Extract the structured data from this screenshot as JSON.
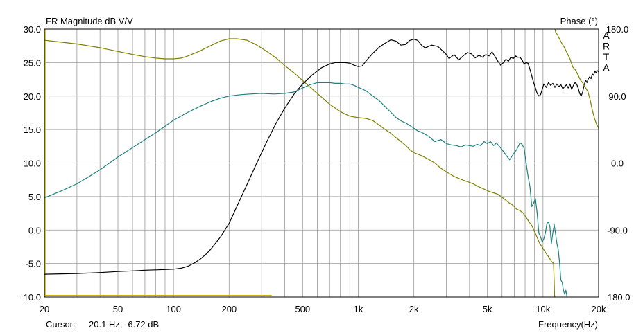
{
  "chart_data": {
    "type": "line",
    "title": "FR Magnitude dB V/V",
    "right_title": "Phase (°)",
    "brand": [
      "A",
      "R",
      "T",
      "A"
    ],
    "xlabel": "Frequency(Hz)",
    "x_scale": "log",
    "xlim": [
      20,
      20000
    ],
    "ylim": [
      -10,
      30
    ],
    "y2lim": [
      -180,
      180
    ],
    "grid": true,
    "x_tick_values": [
      20,
      50,
      100,
      200,
      500,
      1000,
      2000,
      5000,
      10000,
      20000
    ],
    "x_tick_labels": [
      "20",
      "50",
      "100",
      "200",
      "500",
      "1k",
      "2k",
      "5k",
      "10k",
      "20k"
    ],
    "y_tick_values": [
      -10,
      -5,
      0,
      5,
      10,
      15,
      20,
      25,
      30
    ],
    "y_tick_labels": [
      "-10.0",
      "-5.0",
      "0.0",
      "5.0",
      "10.0",
      "15.0",
      "20.0",
      "25.0",
      "30.0"
    ],
    "y2_tick_values": [
      180,
      90,
      0,
      -90,
      -180
    ],
    "y2_tick_labels": [
      "180.0",
      "90.0",
      "0.0",
      "-90.0",
      "-180.0"
    ],
    "cursor_label": "Cursor:",
    "cursor_value": "20.1 Hz, -6.72 dB",
    "colors": {
      "grid": "#9a9a9a",
      "border": "#000000",
      "cursor_line": "#c8b400"
    },
    "series": [
      {
        "color": "#000000",
        "axis": "left",
        "x": [
          20,
          30,
          40,
          50,
          60,
          70,
          80,
          90,
          100,
          110,
          120,
          130,
          140,
          150,
          160,
          180,
          200,
          220,
          250,
          280,
          320,
          360,
          400,
          450,
          500,
          560,
          630,
          700,
          750,
          800,
          850,
          900,
          950,
          1000,
          1050,
          1100,
          1200,
          1300,
          1400,
          1500,
          1600,
          1700,
          1800,
          1900,
          2000,
          2100,
          2200,
          2300,
          2500,
          2700,
          2900,
          3000,
          3100,
          3300,
          3500,
          3700,
          3900,
          4100,
          4300,
          4500,
          4700,
          4900,
          5100,
          5300,
          5500,
          5700,
          5900,
          6100,
          6300,
          6500,
          6700,
          6900,
          7100,
          7300,
          7500,
          7700,
          7900,
          8100,
          8300,
          8500,
          8700,
          8900,
          9100,
          9300,
          9500,
          9700,
          9900,
          10100,
          10400,
          10700,
          11000,
          11300,
          11600,
          11900,
          12200,
          12500,
          12800,
          13100,
          13400,
          13700,
          14000,
          14300,
          14600,
          14900,
          15200,
          15500,
          15800,
          16100,
          16400,
          16700,
          17000,
          17300,
          17600,
          17900,
          18200,
          18500,
          18800,
          19100,
          19400,
          19700,
          20000
        ],
        "values": [
          -6.6,
          -6.5,
          -6.35,
          -6.2,
          -6.1,
          -6.0,
          -5.95,
          -5.9,
          -5.85,
          -5.7,
          -5.4,
          -4.9,
          -4.3,
          -3.6,
          -2.8,
          -1.0,
          1.0,
          3.5,
          6.8,
          9.8,
          13.2,
          16.0,
          18.2,
          20.3,
          21.8,
          23.1,
          24.2,
          24.8,
          25.0,
          25.0,
          25.0,
          24.9,
          24.6,
          24.4,
          24.5,
          25.2,
          26.4,
          27.3,
          27.9,
          28.4,
          28.2,
          27.6,
          27.7,
          28.3,
          28.5,
          28.3,
          27.6,
          27.2,
          27.6,
          27.4,
          26.6,
          26.2,
          25.6,
          26.2,
          25.4,
          26.0,
          26.5,
          26.3,
          25.7,
          26.1,
          25.8,
          26.2,
          26.0,
          26.6,
          25.9,
          25.2,
          24.6,
          25.0,
          25.5,
          25.2,
          25.8,
          25.6,
          26.0,
          25.8,
          25.8,
          25.4,
          24.8,
          25.0,
          24.9,
          24.0,
          23.0,
          22.0,
          21.2,
          20.4,
          20.0,
          20.2,
          21.0,
          21.8,
          21.3,
          22.0,
          21.6,
          21.9,
          21.3,
          21.8,
          21.4,
          21.7,
          21.1,
          21.4,
          21.7,
          21.2,
          21.8,
          21.0,
          21.6,
          22.0,
          21.8,
          21.2,
          20.4,
          20.0,
          20.6,
          21.6,
          22.4,
          22.0,
          22.6,
          22.9,
          22.6,
          23.3,
          23.1,
          23.7,
          23.5,
          23.8,
          23.6
        ]
      },
      {
        "color": "#1e8080",
        "axis": "left",
        "x": [
          20,
          25,
          30,
          35,
          40,
          50,
          60,
          70,
          80,
          90,
          100,
          120,
          140,
          160,
          180,
          200,
          230,
          260,
          300,
          350,
          400,
          450,
          500,
          550,
          600,
          650,
          700,
          750,
          800,
          850,
          900,
          950,
          1000,
          1100,
          1200,
          1300,
          1400,
          1500,
          1600,
          1700,
          1800,
          1900,
          2000,
          2100,
          2200,
          2400,
          2600,
          2800,
          3000,
          3200,
          3400,
          3600,
          3800,
          4000,
          4200,
          4400,
          4600,
          4800,
          5000,
          5200,
          5400,
          5600,
          5800,
          6000,
          6300,
          6600,
          6900,
          7200,
          7500,
          7700,
          7900,
          8100,
          8300,
          8500,
          8700,
          8900,
          9100,
          9300,
          9500,
          9700,
          9900,
          10100,
          10300,
          10500,
          10700,
          10900,
          11100,
          11300,
          11500,
          11700,
          11900,
          12100,
          12300,
          12500,
          12700,
          12900,
          13100,
          13300,
          13500
        ],
        "values": [
          4.8,
          5.9,
          6.9,
          8.0,
          9.0,
          10.9,
          12.3,
          13.5,
          14.5,
          15.5,
          16.4,
          17.6,
          18.5,
          19.2,
          19.7,
          20.0,
          20.2,
          20.3,
          20.4,
          20.3,
          20.4,
          20.6,
          21.2,
          21.7,
          22.0,
          22.0,
          22.0,
          21.9,
          21.9,
          21.8,
          21.8,
          21.6,
          21.3,
          20.8,
          20.0,
          19.3,
          18.4,
          17.6,
          16.8,
          16.3,
          16.0,
          15.6,
          15.2,
          14.8,
          14.6,
          14.0,
          13.2,
          13.5,
          12.9,
          12.7,
          12.6,
          12.4,
          12.7,
          12.6,
          12.5,
          12.8,
          12.6,
          13.2,
          12.9,
          13.2,
          12.6,
          13.0,
          12.5,
          12.0,
          11.2,
          10.5,
          11.3,
          12.0,
          13.0,
          12.8,
          12.2,
          10.0,
          8.0,
          6.5,
          3.5,
          4.0,
          4.7,
          2.5,
          -0.5,
          -1.0,
          -1.8,
          -1.3,
          -0.5,
          1.0,
          1.2,
          0.5,
          -2.0,
          -0.4,
          0.8,
          -0.6,
          -2.0,
          -3.0,
          -5.0,
          -7.5,
          -7.8,
          -9.0,
          -9.6,
          -9.0,
          -10.0
        ]
      },
      {
        "color": "#808000",
        "axis": "right",
        "x": [
          20,
          30,
          40,
          50,
          60,
          70,
          80,
          90,
          100,
          110,
          120,
          140,
          160,
          180,
          200,
          220,
          250,
          280,
          320,
          360,
          400,
          450,
          500,
          560,
          630,
          700,
          800,
          900,
          1000,
          1100,
          1200,
          1300,
          1400,
          1500,
          1600,
          1700,
          1800,
          1900,
          2000,
          2200,
          2400,
          2600,
          2800,
          3000,
          3300,
          3600,
          3900,
          4200,
          4500,
          4800,
          5100,
          5400,
          5700,
          6000,
          6300,
          6600,
          6900,
          7200,
          7500,
          7800,
          8100,
          8400,
          8700,
          9000,
          9300,
          9600,
          9900,
          10200,
          10500,
          10800,
          11100,
          11400,
          11500,
          11550,
          11600,
          11650,
          11700,
          12000,
          12500,
          13000,
          13500,
          14000,
          14500,
          15000,
          15500,
          16000,
          16500,
          17000,
          17500,
          18000,
          18500,
          19000,
          19500,
          20000
        ],
        "values": [
          165,
          160,
          155,
          150,
          146,
          143,
          141,
          140,
          140,
          141,
          144,
          151,
          158,
          164,
          167,
          167,
          165,
          159,
          150,
          141,
          131,
          121,
          111,
          100,
          89,
          79,
          69,
          63,
          61,
          60,
          57,
          51,
          45,
          40,
          34,
          29,
          24,
          18,
          14,
          10,
          5,
          0,
          -7,
          -12,
          -18,
          -22,
          -25,
          -28,
          -32,
          -35,
          -38,
          -40,
          -42,
          -46,
          -50,
          -54,
          -57,
          -62,
          -64,
          -67,
          -73,
          -79,
          -84,
          -92,
          -100,
          -108,
          -113,
          -118,
          -123,
          -127,
          -132,
          -135,
          -160,
          -178,
          180,
          178,
          176,
          172,
          163,
          156,
          148,
          140,
          129,
          125,
          118,
          111,
          107,
          101,
          96,
          85,
          71,
          60,
          52,
          47
        ]
      }
    ]
  }
}
